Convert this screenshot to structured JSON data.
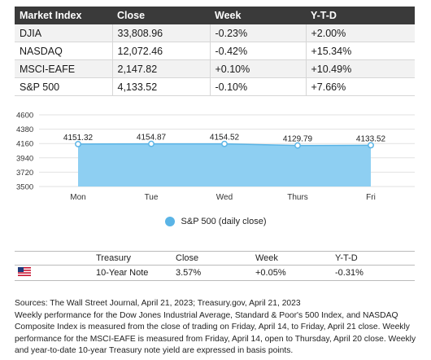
{
  "market_table": {
    "headers": [
      "Market Index",
      "Close",
      "Week",
      "Y-T-D"
    ],
    "rows": [
      [
        "DJIA",
        "33,808.96",
        "-0.23%",
        "+2.00%"
      ],
      [
        "NASDAQ",
        "12,072.46",
        "-0.42%",
        "+15.34%"
      ],
      [
        "MSCI-EAFE",
        "2,147.82",
        "+0.10%",
        "+10.49%"
      ],
      [
        "S&P 500",
        "4,133.52",
        "-0.10%",
        "+7.66%"
      ]
    ]
  },
  "chart_data": {
    "type": "area",
    "categories": [
      "Mon",
      "Tue",
      "Wed",
      "Thurs",
      "Fri"
    ],
    "values": [
      4151.32,
      4154.87,
      4154.52,
      4129.79,
      4133.52
    ],
    "data_labels": [
      "4151.32",
      "4154.87",
      "4154.52",
      "4129.79",
      "4133.52"
    ],
    "y_ticks": [
      "4600",
      "4380",
      "4160",
      "3940",
      "3720",
      "3500"
    ],
    "ylim": [
      3500,
      4600
    ],
    "series_name": "S&P 500 (daily close)",
    "fill_color": "#8ecff2",
    "marker_color": "#5ab4e6",
    "grid": true,
    "legend_position": "bottom"
  },
  "treasury_table": {
    "headers": [
      "",
      "Treasury",
      "Close",
      "Week",
      "Y-T-D"
    ],
    "rows": [
      [
        "us-flag-icon",
        "10-Year Note",
        "3.57%",
        "+0.05%",
        "-0.31%"
      ]
    ]
  },
  "sources": {
    "line1": "Sources: The Wall Street Journal, April 21, 2023; Treasury.gov, April 21, 2023",
    "line2": "Weekly performance for the Dow Jones Industrial Average, Standard & Poor's 500 Index, and NASDAQ Composite Index is measured from the close of trading on Friday, April 14, to Friday, April 21 close. Weekly performance for the MSCI-EAFE is measured from Friday, April 14, open to Thursday, April 20 close. Weekly and year-to-date 10-year Treasury note yield are expressed in basis points."
  }
}
